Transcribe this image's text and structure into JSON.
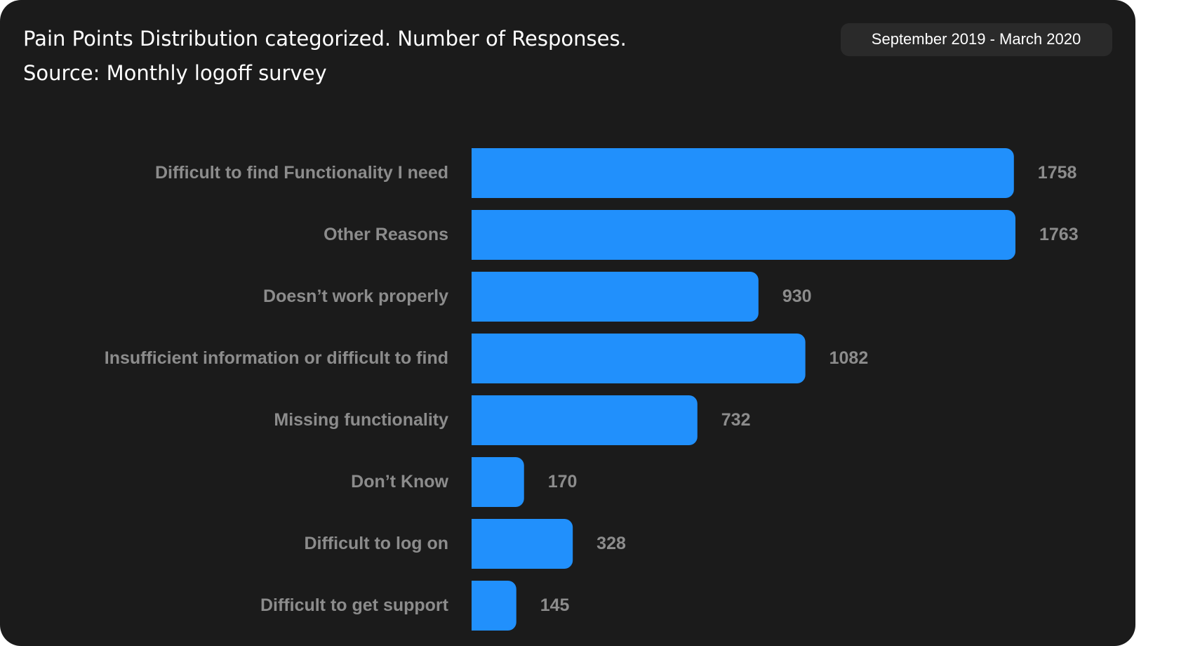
{
  "chart_data": {
    "type": "bar",
    "orientation": "horizontal",
    "title": "Pain Points Distribution categorized. Number of Responses.",
    "subtitle": "Source: Monthly logoff survey",
    "period": "September 2019 - March 2020",
    "categories": [
      "Difficult to find Functionality I need",
      "Other Reasons",
      "Doesn’t work properly",
      "Insufficient information or difficult to find",
      "Missing functionality",
      "Don’t Know",
      "Difficult to log on",
      "Difficult to get support"
    ],
    "values": [
      1758,
      1763,
      930,
      1082,
      732,
      170,
      328,
      145
    ],
    "color": "#2190fc"
  }
}
